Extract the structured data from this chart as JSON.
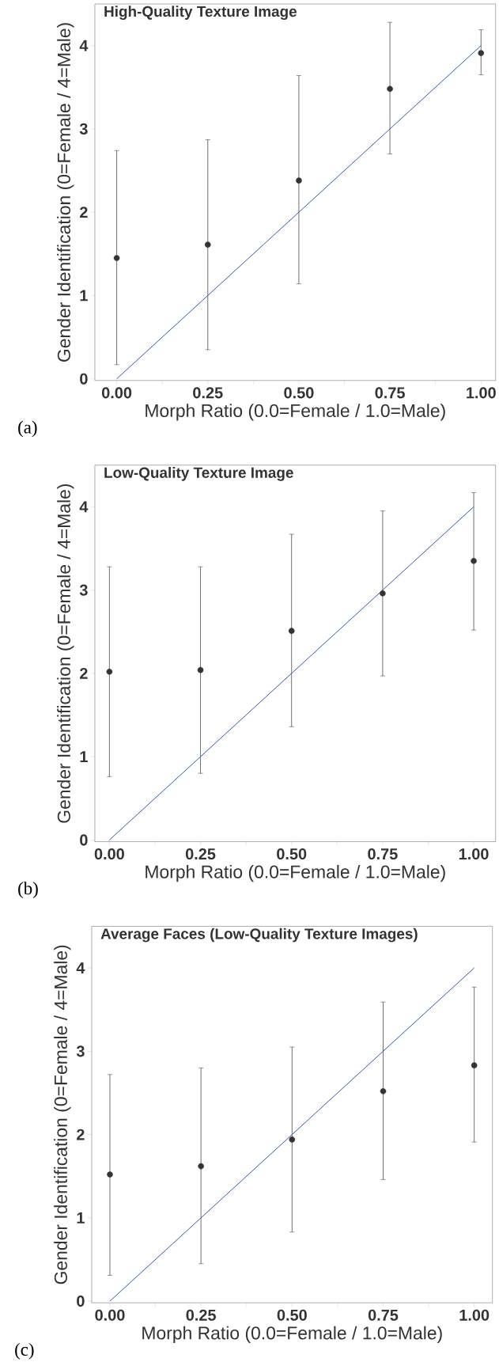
{
  "chart_data": [
    {
      "type": "scatter",
      "title": "High-Quality Texture Image",
      "xlabel": "Morph Ratio (0.0=Female / 1.0=Male)",
      "ylabel": "Gender Identification (0=Female / 4=Male)",
      "annotations": [
        "(a)"
      ],
      "x": [
        0,
        0.25,
        0.5,
        0.75,
        1
      ],
      "series": [
        {
          "type": "scatter",
          "marker": "circle",
          "color": "#333333",
          "values": [
            1.45,
            1.61,
            2.38,
            3.48,
            3.91
          ],
          "errors": [
            [
              0.17,
              2.74
            ],
            [
              0.35,
              2.87
            ],
            [
              1.14,
              3.64
            ],
            [
              2.7,
              4.28
            ],
            [
              3.65,
              4.19
            ]
          ]
        },
        {
          "type": "line",
          "color": "#2a5caa",
          "values": [
            0,
            1,
            2,
            3,
            4
          ]
        }
      ],
      "xlim": [
        -0.06,
        1.04
      ],
      "ylim": [
        -0.02,
        4.5
      ],
      "xticks": [
        {
          "value": 0,
          "label": "0.00"
        },
        {
          "value": 0.125,
          "label": null
        },
        {
          "value": 0.25,
          "label": "0.25"
        },
        {
          "value": 0.375,
          "label": null
        },
        {
          "value": 0.5,
          "label": "0.50"
        },
        {
          "value": 0.625,
          "label": null
        },
        {
          "value": 0.75,
          "label": "0.75"
        },
        {
          "value": 0.875,
          "label": null
        },
        {
          "value": 1,
          "label": "1.00"
        }
      ],
      "yticks": [
        0,
        1,
        2,
        3,
        4
      ]
    },
    {
      "type": "scatter",
      "title": "Low-Quality Texture Image",
      "xlabel": "Morph Ratio (0.0=Female / 1.0=Male)",
      "ylabel": "Gender Identification (0=Female / 4=Male)",
      "annotations": [
        "(b)"
      ],
      "x": [
        0,
        0.25,
        0.5,
        0.75,
        1
      ],
      "series": [
        {
          "type": "scatter",
          "marker": "circle",
          "color": "#333333",
          "values": [
            2.02,
            2.04,
            2.51,
            2.96,
            3.35
          ],
          "errors": [
            [
              0.76,
              3.28
            ],
            [
              0.8,
              3.28
            ],
            [
              1.36,
              3.67
            ],
            [
              1.97,
              3.95
            ],
            [
              2.52,
              4.17
            ]
          ]
        },
        {
          "type": "line",
          "color": "#2a5caa",
          "values": [
            0,
            1,
            2,
            3,
            4
          ]
        }
      ],
      "xlim": [
        -0.04,
        1.06
      ],
      "ylim": [
        -0.02,
        4.5
      ],
      "xticks": [
        {
          "value": 0,
          "label": "0.00"
        },
        {
          "value": 0.125,
          "label": null
        },
        {
          "value": 0.25,
          "label": "0.25"
        },
        {
          "value": 0.375,
          "label": null
        },
        {
          "value": 0.5,
          "label": "0.50"
        },
        {
          "value": 0.625,
          "label": null
        },
        {
          "value": 0.75,
          "label": "0.75"
        },
        {
          "value": 0.875,
          "label": null
        },
        {
          "value": 1,
          "label": "1.00"
        }
      ],
      "yticks": [
        0,
        1,
        2,
        3,
        4
      ]
    },
    {
      "type": "scatter",
      "title": "Average Faces (Low-Quality Texture Images)",
      "xlabel": "Morph Ratio (0.0=Female / 1.0=Male)",
      "ylabel": "Gender Identification (0=Female / 4=Male)",
      "annotations": [
        "(c)"
      ],
      "x": [
        0,
        0.25,
        0.5,
        0.75,
        1
      ],
      "series": [
        {
          "type": "scatter",
          "marker": "circle",
          "color": "#333333",
          "values": [
            1.52,
            1.62,
            1.94,
            2.52,
            2.83
          ],
          "errors": [
            [
              0.31,
              2.72
            ],
            [
              0.45,
              2.8
            ],
            [
              0.83,
              3.05
            ],
            [
              1.46,
              3.59
            ],
            [
              1.91,
              3.77
            ]
          ]
        },
        {
          "type": "line",
          "color": "#2a5caa",
          "values": [
            0,
            1,
            2,
            3,
            4
          ]
        }
      ],
      "xlim": [
        -0.05,
        1.05
      ],
      "ylim": [
        -0.02,
        4.5
      ],
      "xticks": [
        {
          "value": 0,
          "label": "0.00"
        },
        {
          "value": 0.125,
          "label": null
        },
        {
          "value": 0.25,
          "label": "0.25"
        },
        {
          "value": 0.375,
          "label": null
        },
        {
          "value": 0.5,
          "label": "0.50"
        },
        {
          "value": 0.625,
          "label": null
        },
        {
          "value": 0.75,
          "label": "0.75"
        },
        {
          "value": 0.875,
          "label": null
        },
        {
          "value": 1,
          "label": "1.00"
        }
      ],
      "yticks": [
        0,
        1,
        2,
        3,
        4
      ]
    }
  ]
}
